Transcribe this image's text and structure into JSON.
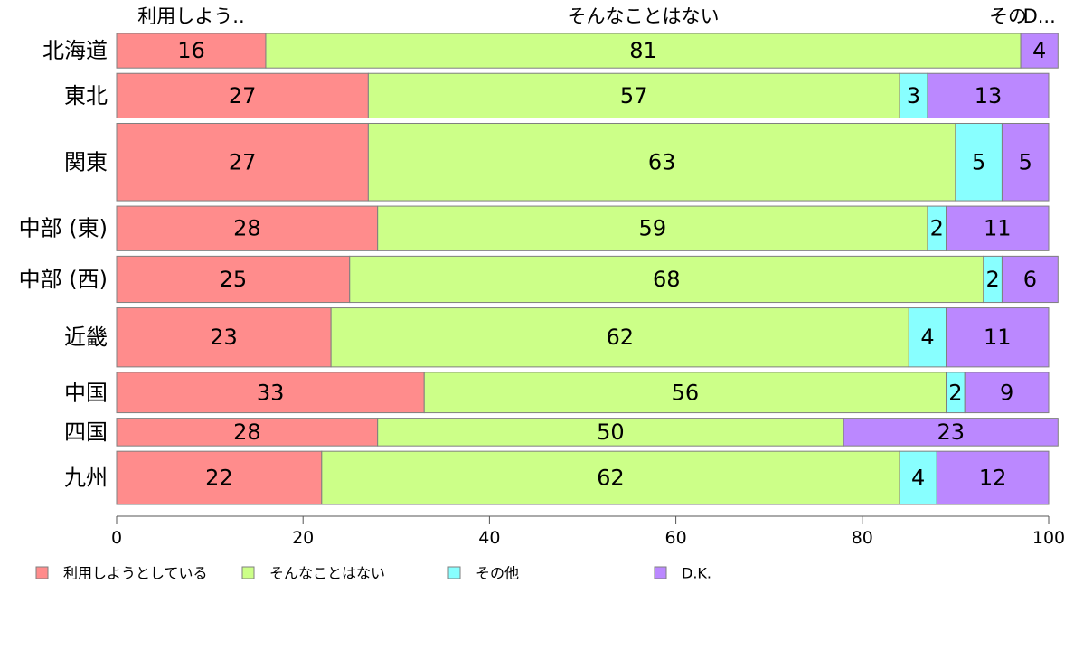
{
  "chart_data": {
    "type": "bar",
    "orientation": "horizontal",
    "stacked": true,
    "categories": [
      "北海道",
      "東北",
      "関東",
      "中部 (東)",
      "中部 (西)",
      "近畿",
      "中国",
      "四国",
      "九州"
    ],
    "series": [
      {
        "name": "利用しようとしている",
        "color": "#ff8c8c",
        "values": [
          16,
          27,
          27,
          28,
          25,
          23,
          33,
          28,
          22
        ]
      },
      {
        "name": "そんなことはない",
        "color": "#ccff88",
        "values": [
          81,
          57,
          63,
          59,
          68,
          62,
          56,
          50,
          62
        ]
      },
      {
        "name": "その他",
        "color": "#88ffff",
        "values": [
          0,
          3,
          5,
          2,
          2,
          4,
          2,
          0,
          4
        ]
      },
      {
        "name": "D.K.",
        "color": "#bb88ff",
        "values": [
          4,
          13,
          5,
          11,
          6,
          11,
          9,
          23,
          12
        ]
      }
    ],
    "row_weights": [
      1,
      1.29,
      2.24,
      1.29,
      1.34,
      1.71,
      1.17,
      0.8,
      1.54
    ],
    "top_labels": [
      "利用しよう..",
      "そんなことはない",
      "その",
      "D..."
    ],
    "xlim": [
      0,
      100
    ],
    "xticks": [
      0,
      20,
      40,
      60,
      80,
      100
    ],
    "grid": false,
    "legend_position": "bottom"
  }
}
